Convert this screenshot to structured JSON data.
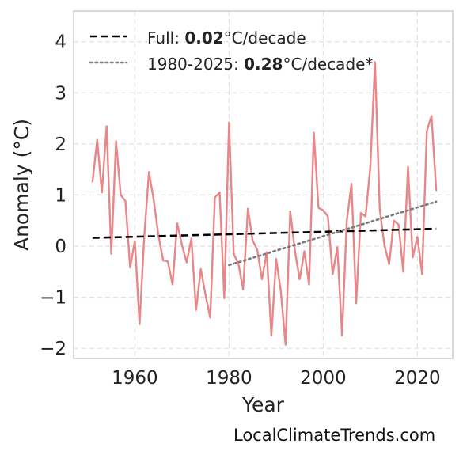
{
  "chart_data": {
    "type": "line",
    "xlabel": "Year",
    "ylabel": "Anomaly (°C)",
    "xlim": [
      1947,
      2027.5
    ],
    "ylim": [
      -2.2,
      4.6
    ],
    "xticks": [
      1960,
      1980,
      2000,
      2020
    ],
    "xtick_labels": [
      "1960",
      "1980",
      "2000",
      "2020"
    ],
    "yticks": [
      -2,
      -1,
      0,
      1,
      2,
      3,
      4
    ],
    "ytick_labels": [
      "−2",
      "−1",
      "0",
      "1",
      "2",
      "3",
      "4"
    ],
    "grid": true,
    "legend_position": "top-left",
    "series": [
      {
        "color": "#e8878a",
        "style": "solid",
        "x": [
          1951,
          1952,
          1953,
          1954,
          1955,
          1956,
          1957,
          1958,
          1959,
          1960,
          1961,
          1962,
          1963,
          1964,
          1965,
          1966,
          1967,
          1968,
          1969,
          1970,
          1971,
          1972,
          1973,
          1974,
          1975,
          1976,
          1977,
          1978,
          1979,
          1980,
          1981,
          1982,
          1983,
          1984,
          1985,
          1986,
          1987,
          1988,
          1989,
          1990,
          1991,
          1992,
          1993,
          1994,
          1995,
          1996,
          1997,
          1998,
          1999,
          2000,
          2001,
          2002,
          2003,
          2004,
          2005,
          2006,
          2007,
          2008,
          2009,
          2010,
          2011,
          2012,
          2013,
          2014,
          2015,
          2016,
          2017,
          2018,
          2019,
          2020,
          2021,
          2022,
          2023,
          2024
        ],
        "y": [
          1.25,
          2.08,
          1.05,
          2.35,
          -0.15,
          2.05,
          1.0,
          0.88,
          -0.42,
          0.1,
          -1.53,
          0.2,
          1.45,
          0.9,
          0.22,
          -0.28,
          -0.3,
          -0.75,
          0.45,
          0.02,
          -0.32,
          0.15,
          -1.25,
          -0.45,
          -0.95,
          -1.4,
          0.95,
          1.05,
          -1.02,
          2.42,
          -0.15,
          -0.35,
          -0.85,
          0.73,
          0.12,
          -0.08,
          -0.65,
          -0.12,
          -1.75,
          -0.25,
          -0.88,
          -1.93,
          0.68,
          -0.1,
          -0.65,
          -0.1,
          -0.75,
          2.22,
          0.75,
          0.7,
          0.58,
          -0.55,
          -0.02,
          -1.75,
          0.48,
          1.22,
          -1.12,
          0.65,
          0.58,
          1.55,
          3.6,
          0.72,
          0.02,
          -0.35,
          0.5,
          0.42,
          -0.5,
          1.55,
          -0.22,
          0.18,
          -0.55,
          2.25,
          2.55,
          1.08
        ]
      },
      {
        "name": "Full",
        "color": "#000000",
        "style": "dashed",
        "x": [
          1951,
          2024
        ],
        "y": [
          0.16,
          0.34
        ],
        "trend_value": "0.02",
        "unit": "°C/decade"
      },
      {
        "name": "1980-2025",
        "color": "#7a7a7a",
        "style": "dotted",
        "x": [
          1980,
          2024
        ],
        "y": [
          -0.37,
          0.87
        ],
        "trend_value": "0.28",
        "unit": "°C/decade*"
      }
    ]
  },
  "watermark": "LocalClimateTrends.com"
}
